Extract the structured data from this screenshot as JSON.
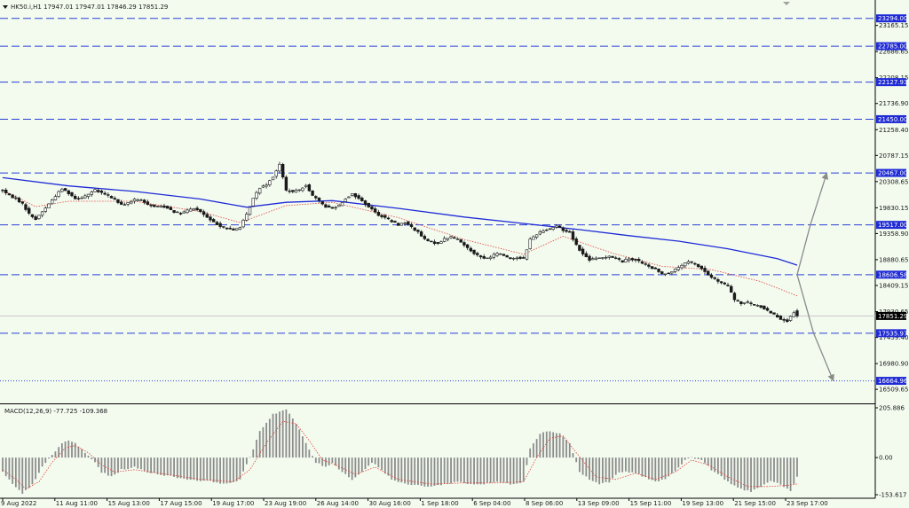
{
  "header": {
    "title": "HK50.i,H1  17947.01 17947.01 17846.29 17851.29"
  },
  "macd_label": "MACD(12,26,9) -77.725 -109.368",
  "colors": {
    "background": "#f3fbef",
    "candle": "#1a1a1a",
    "ma_long": "#1f2bd6",
    "ma_short": "#e0413a",
    "level_line": "#2a3fd8",
    "level_tag_bg": "#1f2bd6",
    "current_tag_bg": "#000000",
    "arrow": "#8a8a8a",
    "macd_bar": "#8c8c8c",
    "macd_signal": "#e0413a"
  },
  "chart_data": [
    {
      "type": "candlestick",
      "symbol": "HK50.i",
      "timeframe": "H1",
      "ohlc_last": {
        "open": 17947.01,
        "high": 17947.01,
        "low": 17846.29,
        "close": 17851.29
      },
      "current_price": "17851.29",
      "ylim": [
        16350,
        23500
      ],
      "y_ticks": [
        "23165.15",
        "22686.65",
        "22208.15",
        "21736.90",
        "21258.40",
        "20787.15",
        "20308.65",
        "19830.15",
        "19358.90",
        "18880.65",
        "18409.15",
        "17930.65",
        "17459.40",
        "16980.90",
        "16509.65"
      ],
      "x_ticks": [
        "9 Aug 2022",
        "11 Aug 11:00",
        "15 Aug 13:00",
        "17 Aug 15:00",
        "19 Aug 17:00",
        "23 Aug 19:00",
        "26 Aug 14:00",
        "30 Aug 16:00",
        "1 Sep 18:00",
        "6 Sep 04:00",
        "8 Sep 06:00",
        "13 Sep 09:00",
        "15 Sep 11:00",
        "19 Sep 13:00",
        "21 Sep 15:00",
        "23 Sep 17:00"
      ],
      "price_path": [
        [
          0,
          20150
        ],
        [
          2,
          20050
        ],
        [
          4,
          20000
        ],
        [
          6,
          19900
        ],
        [
          8,
          19720
        ],
        [
          10,
          19620
        ],
        [
          12,
          19760
        ],
        [
          14,
          19900
        ],
        [
          16,
          20050
        ],
        [
          18,
          20180
        ],
        [
          20,
          20100
        ],
        [
          22,
          20000
        ],
        [
          24,
          20020
        ],
        [
          26,
          20080
        ],
        [
          28,
          20150
        ],
        [
          30,
          20100
        ],
        [
          32,
          20050
        ],
        [
          34,
          19980
        ],
        [
          36,
          19880
        ],
        [
          38,
          19920
        ],
        [
          40,
          19980
        ],
        [
          42,
          19960
        ],
        [
          44,
          19900
        ],
        [
          46,
          19850
        ],
        [
          48,
          19860
        ],
        [
          50,
          19830
        ],
        [
          52,
          19760
        ],
        [
          54,
          19720
        ],
        [
          56,
          19780
        ],
        [
          58,
          19820
        ],
        [
          60,
          19760
        ],
        [
          62,
          19650
        ],
        [
          64,
          19560
        ],
        [
          66,
          19500
        ],
        [
          68,
          19450
        ],
        [
          70,
          19420
        ],
        [
          72,
          19480
        ],
        [
          74,
          19700
        ],
        [
          76,
          20000
        ],
        [
          78,
          20200
        ],
        [
          80,
          20260
        ],
        [
          82,
          20400
        ],
        [
          84,
          20620
        ],
        [
          86,
          20150
        ],
        [
          88,
          20120
        ],
        [
          90,
          20160
        ],
        [
          92,
          20250
        ],
        [
          94,
          20050
        ],
        [
          96,
          19950
        ],
        [
          98,
          19850
        ],
        [
          100,
          19820
        ],
        [
          102,
          19880
        ],
        [
          104,
          20000
        ],
        [
          106,
          20080
        ],
        [
          108,
          20000
        ],
        [
          110,
          19900
        ],
        [
          112,
          19800
        ],
        [
          114,
          19700
        ],
        [
          116,
          19650
        ],
        [
          118,
          19580
        ],
        [
          120,
          19520
        ],
        [
          122,
          19560
        ],
        [
          124,
          19480
        ],
        [
          126,
          19380
        ],
        [
          128,
          19250
        ],
        [
          130,
          19200
        ],
        [
          132,
          19180
        ],
        [
          134,
          19260
        ],
        [
          136,
          19300
        ],
        [
          138,
          19250
        ],
        [
          140,
          19150
        ],
        [
          142,
          19050
        ],
        [
          144,
          18960
        ],
        [
          146,
          18900
        ],
        [
          148,
          18930
        ],
        [
          150,
          19000
        ],
        [
          152,
          18960
        ],
        [
          154,
          18900
        ],
        [
          156,
          18920
        ],
        [
          158,
          18900
        ],
        [
          160,
          19250
        ],
        [
          162,
          19350
        ],
        [
          164,
          19420
        ],
        [
          166,
          19450
        ],
        [
          168,
          19500
        ],
        [
          170,
          19420
        ],
        [
          172,
          19380
        ],
        [
          174,
          19150
        ],
        [
          176,
          18980
        ],
        [
          178,
          18880
        ],
        [
          180,
          18900
        ],
        [
          182,
          18920
        ],
        [
          184,
          18950
        ],
        [
          186,
          18900
        ],
        [
          188,
          18850
        ],
        [
          190,
          18900
        ],
        [
          192,
          18880
        ],
        [
          194,
          18820
        ],
        [
          196,
          18750
        ],
        [
          198,
          18700
        ],
        [
          200,
          18620
        ],
        [
          202,
          18640
        ],
        [
          204,
          18700
        ],
        [
          206,
          18780
        ],
        [
          208,
          18840
        ],
        [
          210,
          18800
        ],
        [
          212,
          18720
        ],
        [
          214,
          18600
        ],
        [
          216,
          18520
        ],
        [
          218,
          18450
        ],
        [
          220,
          18400
        ],
        [
          222,
          18150
        ],
        [
          224,
          18080
        ],
        [
          226,
          18100
        ],
        [
          228,
          18050
        ],
        [
          230,
          18020
        ],
        [
          232,
          17950
        ],
        [
          234,
          17880
        ],
        [
          236,
          17800
        ],
        [
          238,
          17760
        ],
        [
          240,
          17900
        ],
        [
          241,
          17851.29
        ]
      ],
      "ma_long": [
        [
          0,
          20380
        ],
        [
          20,
          20230
        ],
        [
          40,
          20130
        ],
        [
          60,
          19990
        ],
        [
          74,
          19840
        ],
        [
          86,
          19930
        ],
        [
          100,
          19960
        ],
        [
          120,
          19820
        ],
        [
          140,
          19660
        ],
        [
          160,
          19530
        ],
        [
          175,
          19430
        ],
        [
          190,
          19320
        ],
        [
          205,
          19220
        ],
        [
          220,
          19080
        ],
        [
          235,
          18900
        ],
        [
          241,
          18780
        ]
      ],
      "ma_short": [
        [
          0,
          20150
        ],
        [
          10,
          19850
        ],
        [
          20,
          19950
        ],
        [
          40,
          19950
        ],
        [
          60,
          19760
        ],
        [
          72,
          19560
        ],
        [
          86,
          19870
        ],
        [
          100,
          19930
        ],
        [
          120,
          19650
        ],
        [
          140,
          19250
        ],
        [
          158,
          18980
        ],
        [
          170,
          19310
        ],
        [
          185,
          19000
        ],
        [
          200,
          18760
        ],
        [
          215,
          18700
        ],
        [
          230,
          18480
        ],
        [
          241,
          18220
        ]
      ],
      "levels": [
        {
          "value": 23294.0,
          "label": "23294.00",
          "style": "dashed"
        },
        {
          "value": 22785.0,
          "label": "22785.00",
          "style": "dashed"
        },
        {
          "value": 22127.93,
          "label": "22127.93",
          "style": "dashed"
        },
        {
          "value": 21450.0,
          "label": "21450.00",
          "style": "dashed"
        },
        {
          "value": 20467.0,
          "label": "20467.00",
          "style": "dashed"
        },
        {
          "value": 19517.0,
          "label": "19517.00",
          "style": "dashed"
        },
        {
          "value": 18606.58,
          "label": "18606.58",
          "style": "dashed"
        },
        {
          "value": 17535.97,
          "label": "17535.97",
          "style": "dashed"
        },
        {
          "value": 16664.96,
          "label": "16664.96",
          "style": "dotted"
        }
      ],
      "arrows": [
        {
          "from": [
            241,
            18606.58
          ],
          "via": [
            245,
            19517.0
          ],
          "to": [
            250,
            20467.0
          ]
        },
        {
          "from": [
            241,
            18606.58
          ],
          "via": [
            246,
            17535.97
          ],
          "to": [
            252,
            16664.96
          ]
        }
      ]
    },
    {
      "type": "bar",
      "name": "MACD(12,26,9)",
      "main_value": "-77.725",
      "signal_value": "-109.368",
      "ylim": [
        -153.617,
        205.886
      ],
      "y_ticks": [
        "205.886",
        "0.00",
        "-153.617"
      ],
      "histogram_path": [
        [
          0,
          -60
        ],
        [
          3,
          -110
        ],
        [
          6,
          -150
        ],
        [
          9,
          -110
        ],
        [
          12,
          -40
        ],
        [
          15,
          10
        ],
        [
          18,
          60
        ],
        [
          20,
          70
        ],
        [
          22,
          60
        ],
        [
          25,
          20
        ],
        [
          28,
          -20
        ],
        [
          30,
          -60
        ],
        [
          33,
          -80
        ],
        [
          36,
          -50
        ],
        [
          40,
          -40
        ],
        [
          44,
          -60
        ],
        [
          48,
          -70
        ],
        [
          52,
          -80
        ],
        [
          56,
          -90
        ],
        [
          60,
          -95
        ],
        [
          64,
          -100
        ],
        [
          68,
          -110
        ],
        [
          72,
          -90
        ],
        [
          75,
          0
        ],
        [
          78,
          110
        ],
        [
          82,
          180
        ],
        [
          86,
          200
        ],
        [
          89,
          140
        ],
        [
          92,
          60
        ],
        [
          95,
          -20
        ],
        [
          98,
          -40
        ],
        [
          100,
          -20
        ],
        [
          103,
          -60
        ],
        [
          106,
          -90
        ],
        [
          109,
          -60
        ],
        [
          112,
          -20
        ],
        [
          115,
          -50
        ],
        [
          118,
          -90
        ],
        [
          122,
          -110
        ],
        [
          126,
          -115
        ],
        [
          130,
          -120
        ],
        [
          134,
          -110
        ],
        [
          138,
          -100
        ],
        [
          142,
          -110
        ],
        [
          146,
          -110
        ],
        [
          150,
          -100
        ],
        [
          154,
          -110
        ],
        [
          158,
          -100
        ],
        [
          160,
          40
        ],
        [
          163,
          100
        ],
        [
          166,
          110
        ],
        [
          169,
          100
        ],
        [
          172,
          60
        ],
        [
          175,
          -60
        ],
        [
          178,
          -90
        ],
        [
          181,
          -110
        ],
        [
          184,
          -100
        ],
        [
          187,
          -60
        ],
        [
          190,
          -60
        ],
        [
          193,
          -70
        ],
        [
          196,
          -90
        ],
        [
          199,
          -100
        ],
        [
          202,
          -80
        ],
        [
          205,
          -40
        ],
        [
          207,
          -10
        ],
        [
          209,
          0
        ],
        [
          212,
          -10
        ],
        [
          215,
          -50
        ],
        [
          218,
          -80
        ],
        [
          221,
          -110
        ],
        [
          224,
          -130
        ],
        [
          227,
          -140
        ],
        [
          230,
          -120
        ],
        [
          233,
          -100
        ],
        [
          236,
          -110
        ],
        [
          239,
          -140
        ],
        [
          241,
          -77.725
        ]
      ],
      "signal_path": [
        [
          0,
          -50
        ],
        [
          4,
          -90
        ],
        [
          7,
          -130
        ],
        [
          11,
          -100
        ],
        [
          15,
          -20
        ],
        [
          19,
          40
        ],
        [
          22,
          50
        ],
        [
          26,
          20
        ],
        [
          30,
          -30
        ],
        [
          34,
          -60
        ],
        [
          40,
          -50
        ],
        [
          50,
          -70
        ],
        [
          60,
          -90
        ],
        [
          70,
          -100
        ],
        [
          75,
          -50
        ],
        [
          80,
          60
        ],
        [
          85,
          150
        ],
        [
          89,
          140
        ],
        [
          93,
          70
        ],
        [
          97,
          -10
        ],
        [
          101,
          -30
        ],
        [
          107,
          -70
        ],
        [
          113,
          -40
        ],
        [
          120,
          -90
        ],
        [
          130,
          -110
        ],
        [
          140,
          -105
        ],
        [
          150,
          -105
        ],
        [
          158,
          -100
        ],
        [
          162,
          0
        ],
        [
          166,
          80
        ],
        [
          170,
          90
        ],
        [
          174,
          20
        ],
        [
          180,
          -80
        ],
        [
          186,
          -90
        ],
        [
          192,
          -65
        ],
        [
          198,
          -90
        ],
        [
          204,
          -60
        ],
        [
          209,
          -10
        ],
        [
          214,
          -30
        ],
        [
          220,
          -80
        ],
        [
          226,
          -120
        ],
        [
          232,
          -120
        ],
        [
          238,
          -115
        ],
        [
          241,
          -109.368
        ]
      ]
    }
  ]
}
